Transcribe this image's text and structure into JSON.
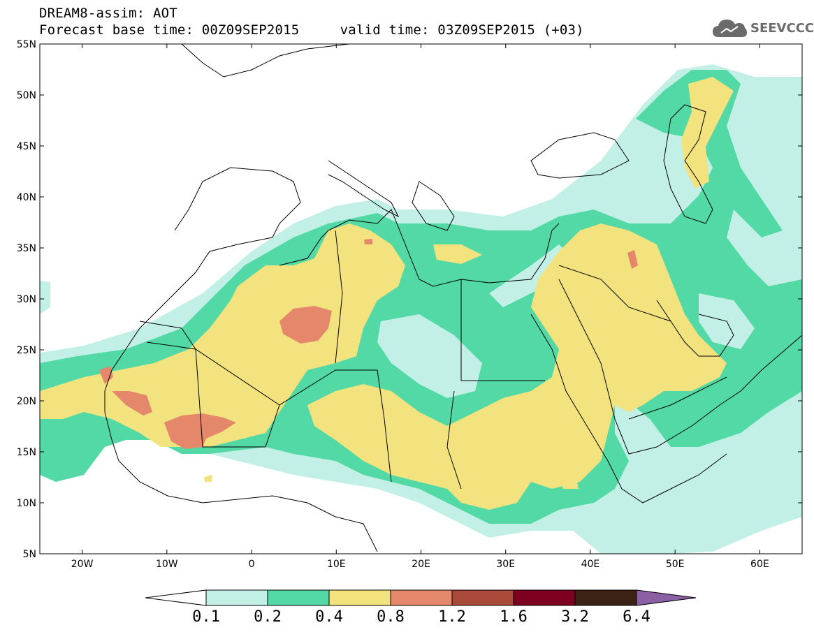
{
  "title": {
    "line1": "DREAM8-assim: AOT",
    "line2": "Forecast base time: 00Z09SEP2015     valid time: 03Z09SEP2015 (+03)"
  },
  "logo": {
    "text": "SEEVCCC",
    "icon": "cloud-icon"
  },
  "map": {
    "variable": "AOT",
    "lon_range": [
      -25,
      65
    ],
    "lat_range": [
      5,
      55
    ],
    "lat_ticks": [
      "55N",
      "50N",
      "45N",
      "40N",
      "35N",
      "30N",
      "25N",
      "20N",
      "15N",
      "10N",
      "5N"
    ],
    "lon_ticks": [
      "20W",
      "10W",
      "0",
      "10E",
      "20E",
      "30E",
      "40E",
      "50E",
      "60E"
    ]
  },
  "colorbar": {
    "labels": [
      "0.1",
      "0.2",
      "0.4",
      "0.8",
      "1.2",
      "1.6",
      "3.2",
      "6.4"
    ],
    "colors": [
      "#ffffff",
      "#c3f0e6",
      "#52d9a6",
      "#f3e37e",
      "#e4876b",
      "#a8493a",
      "#7e0021",
      "#3c2214",
      "#8b5fa4"
    ]
  },
  "colors": {
    "level_0_1": "#c3f0e6",
    "level_0_2": "#52d9a6",
    "level_0_4": "#f3e37e",
    "level_0_8": "#e4876b"
  }
}
